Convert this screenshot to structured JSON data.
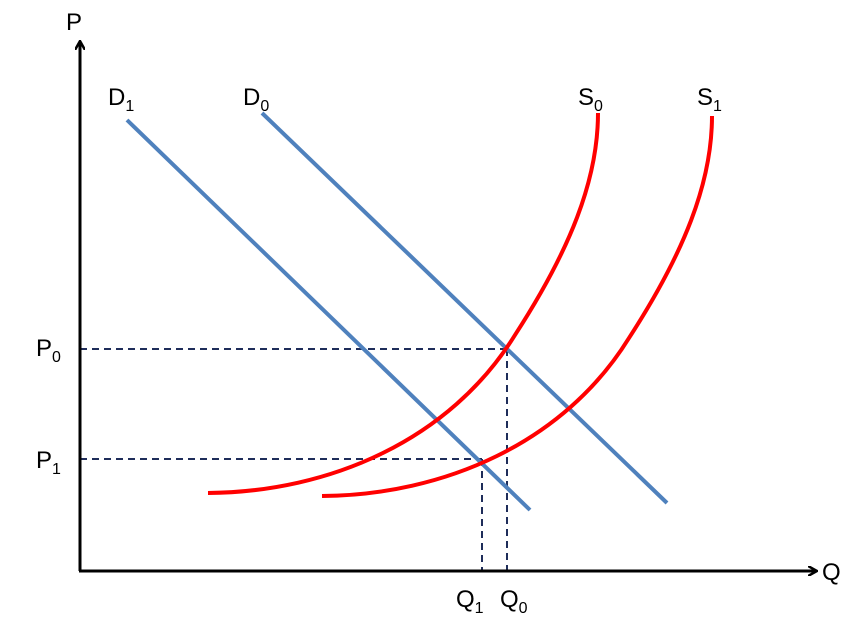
{
  "axes": {
    "y": "P",
    "x": "Q"
  },
  "curves": {
    "d1": {
      "letter": "D",
      "subscript": "1"
    },
    "d0": {
      "letter": "D",
      "subscript": "0"
    },
    "s0": {
      "letter": "S",
      "subscript": "0"
    },
    "s1": {
      "letter": "S",
      "subscript": "1"
    }
  },
  "levels": {
    "p0": {
      "letter": "P",
      "subscript": "0"
    },
    "p1": {
      "letter": "P",
      "subscript": "1"
    },
    "q1": {
      "letter": "Q",
      "subscript": "1"
    },
    "q0": {
      "letter": "Q",
      "subscript": "0"
    }
  }
}
